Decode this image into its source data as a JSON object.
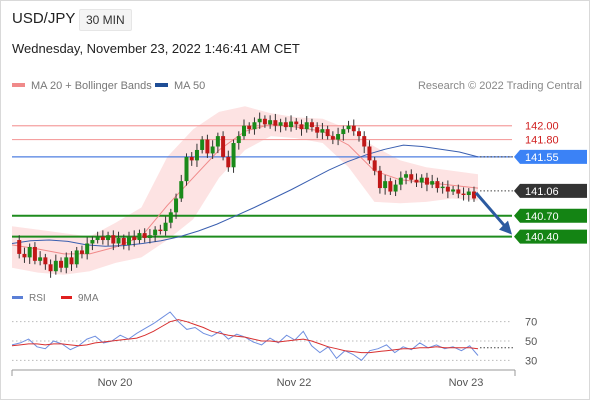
{
  "header": {
    "symbol": "USD/JPY",
    "timeframe": "30 MIN",
    "datetime": "Wednesday, November 23, 2022 1:46:41 AM CET"
  },
  "legend": {
    "ma20_bb": {
      "label": "MA 20 + Bollinger Bands",
      "color": "#f08a8a"
    },
    "ma50": {
      "label": "MA 50",
      "color": "#1f4e96"
    },
    "copyright": "Research © 2022 Trading Central"
  },
  "rsi_legend": {
    "rsi": {
      "label": "RSI",
      "color": "#5b7fd6"
    },
    "ma9": {
      "label": "9MA",
      "color": "#e02020"
    }
  },
  "chart_data": [
    {
      "type": "candlestick",
      "title": "USD/JPY 30 MIN",
      "x_ticks": [
        "Nov 20",
        "Nov 22",
        "Nov 23"
      ],
      "ylim": [
        139.6,
        142.4
      ],
      "price_labels": [
        {
          "text": "142.00",
          "value": 142.0,
          "style": "red-text"
        },
        {
          "text": "141.80",
          "value": 141.8,
          "style": "red-text"
        },
        {
          "text": "141.55",
          "value": 141.55,
          "style": "blue-box"
        },
        {
          "text": "141.06",
          "value": 141.06,
          "style": "dark-box"
        },
        {
          "text": "140.70",
          "value": 140.7,
          "style": "green-box"
        },
        {
          "text": "140.40",
          "value": 140.4,
          "style": "green-box"
        }
      ],
      "levels": [
        {
          "value": 142.0,
          "color": "#f5a0a0"
        },
        {
          "value": 141.8,
          "color": "#f5a0a0"
        },
        {
          "value": 141.55,
          "color": "#4f7fe0"
        },
        {
          "value": 140.7,
          "color": "#1e8c1e"
        },
        {
          "value": 140.4,
          "color": "#1e8c1e"
        }
      ],
      "close_path": [
        140.35,
        140.15,
        140.1,
        140.25,
        140.05,
        140.1,
        140.0,
        139.9,
        140.05,
        139.95,
        140.1,
        140.0,
        140.2,
        140.15,
        140.3,
        140.35,
        140.4,
        140.35,
        140.42,
        140.3,
        140.38,
        140.28,
        140.4,
        140.35,
        140.45,
        140.38,
        140.42,
        140.5,
        140.48,
        140.6,
        140.75,
        140.95,
        141.2,
        141.55,
        141.5,
        141.65,
        141.8,
        141.6,
        141.7,
        141.85,
        141.55,
        141.4,
        141.75,
        141.85,
        142.0,
        141.95,
        142.05,
        142.1,
        142.02,
        142.08,
        142.0,
        142.05,
        141.98,
        142.06,
        142.02,
        141.95,
        142.05,
        141.98,
        141.9,
        141.95,
        141.85,
        141.8,
        141.88,
        141.95,
        142.0,
        141.92,
        141.85,
        141.7,
        141.5,
        141.35,
        141.1,
        141.2,
        141.05,
        141.15,
        141.25,
        141.3,
        141.22,
        141.18,
        141.25,
        141.15,
        141.2,
        141.1,
        141.12,
        141.05,
        141.08,
        141.02,
        141.0,
        141.05,
        140.95
      ],
      "ma50": [
        140.3,
        140.34,
        140.35,
        140.33,
        140.28,
        140.26,
        140.27,
        140.3,
        140.34,
        140.4,
        140.48,
        140.58,
        140.7,
        140.82,
        140.95,
        141.08,
        141.22,
        141.36,
        141.48,
        141.58,
        141.66,
        141.72,
        141.7,
        141.66,
        141.62,
        141.55
      ],
      "bb_upper": [
        140.55,
        140.5,
        140.45,
        140.4,
        140.6,
        140.82,
        141.55,
        141.95,
        142.2,
        142.28,
        142.18,
        142.12,
        142.1,
        141.95,
        141.7,
        141.5,
        141.4,
        141.35,
        141.3
      ],
      "bb_lower": [
        139.95,
        139.88,
        139.85,
        139.9,
        140.02,
        140.1,
        140.35,
        140.65,
        141.25,
        141.65,
        141.85,
        141.82,
        141.75,
        141.4,
        140.9,
        140.88,
        140.9,
        140.95,
        140.92
      ],
      "ma20": [
        140.28,
        140.22,
        140.15,
        140.15,
        140.25,
        140.4,
        140.85,
        141.25,
        141.65,
        141.92,
        142.02,
        141.98,
        141.92,
        141.72,
        141.35,
        141.22,
        141.18,
        141.14,
        141.1
      ],
      "forecast": {
        "from": 141.06,
        "to": 140.4
      }
    },
    {
      "type": "line",
      "title": "RSI",
      "x_ticks": [
        "Nov 20",
        "Nov 22",
        "Nov 23"
      ],
      "y_ticks": [
        70,
        50,
        30
      ],
      "ylim": [
        20,
        80
      ],
      "series": [
        {
          "name": "RSI",
          "values": [
            46,
            48,
            52,
            44,
            42,
            50,
            47,
            41,
            45,
            52,
            55,
            48,
            50,
            56,
            52,
            58,
            63,
            68,
            74,
            80,
            70,
            62,
            64,
            58,
            55,
            60,
            52,
            57,
            54,
            49,
            46,
            53,
            48,
            56,
            51,
            60,
            45,
            38,
            44,
            32,
            40,
            36,
            30,
            40,
            42,
            46,
            38,
            44,
            41,
            48,
            43,
            46,
            42,
            44,
            40,
            45,
            35
          ]
        },
        {
          "name": "9MA",
          "values": [
            45,
            46,
            47,
            47,
            46,
            47,
            47,
            46,
            45,
            46,
            48,
            49,
            50,
            51,
            52,
            53,
            56,
            60,
            65,
            70,
            72,
            70,
            67,
            64,
            60,
            58,
            56,
            55,
            54,
            52,
            50,
            50,
            49,
            50,
            51,
            52,
            50,
            47,
            44,
            42,
            40,
            39,
            38,
            38,
            39,
            40,
            41,
            42,
            42,
            43,
            43,
            44,
            43,
            43,
            43,
            43,
            42
          ]
        }
      ]
    }
  ]
}
